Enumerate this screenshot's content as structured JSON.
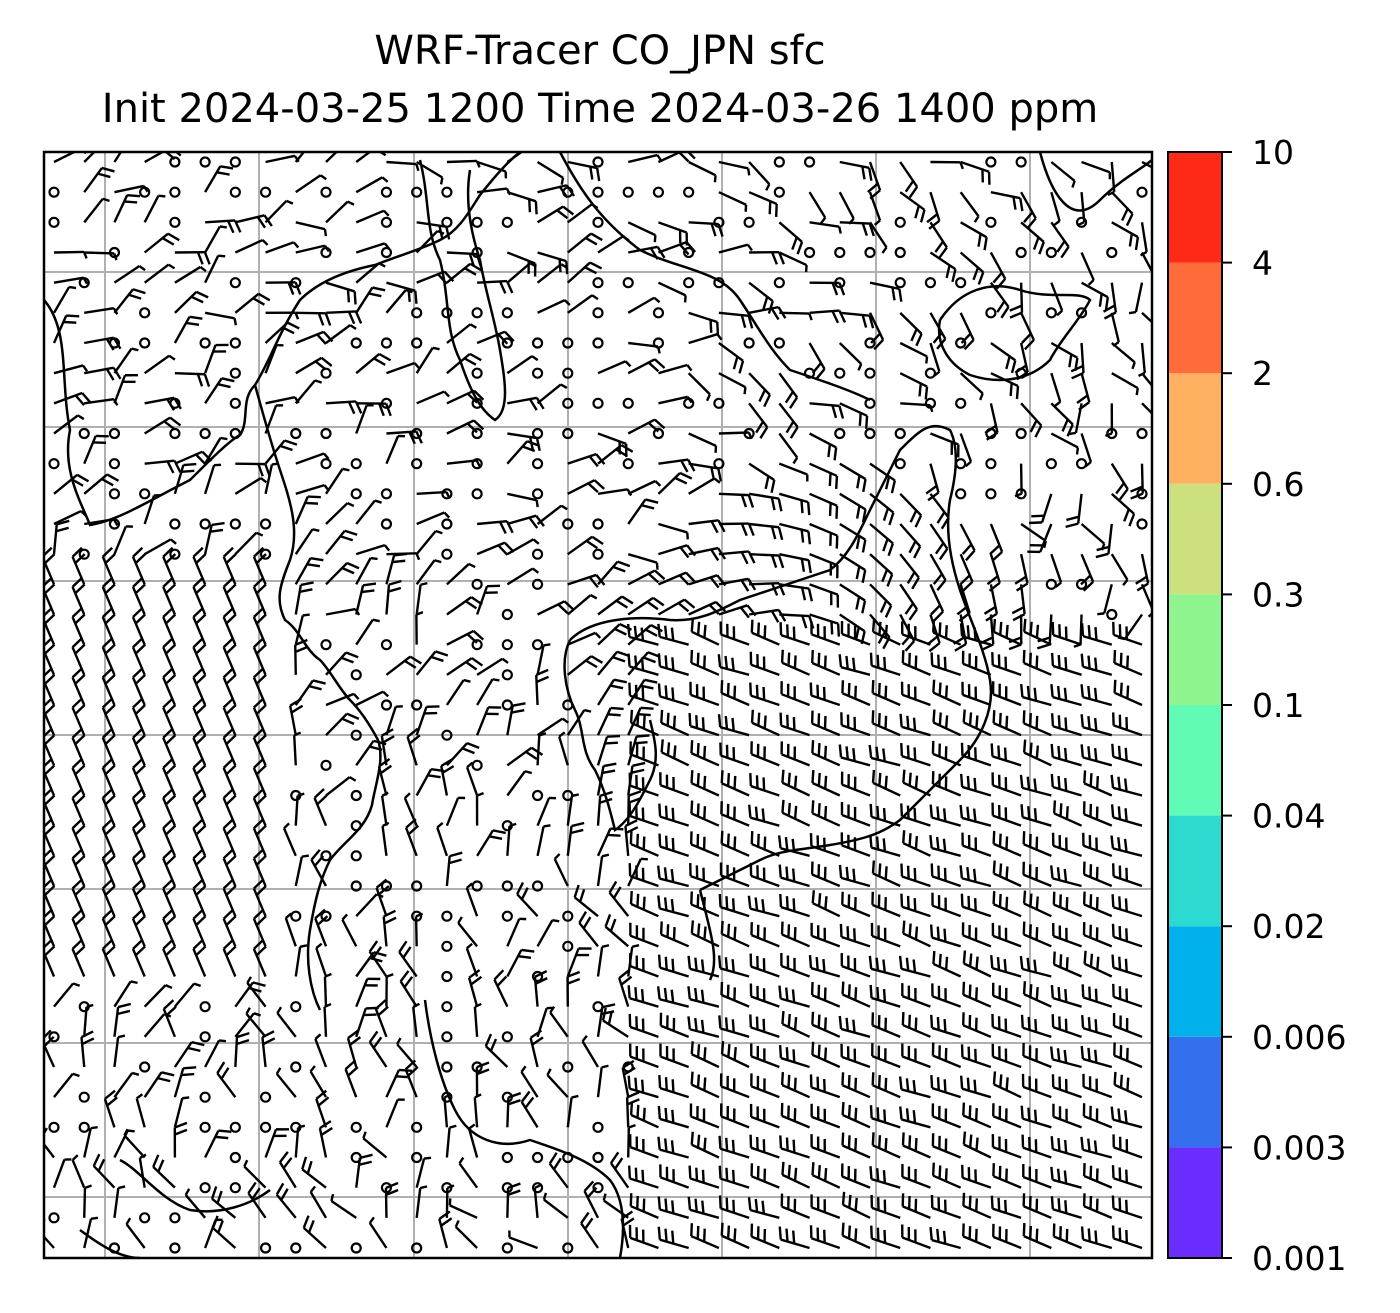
{
  "title": {
    "line1": "WRF-Tracer CO_JPN sfc",
    "line2": "Init 2024-03-25 1200 Time 2024-03-26 1400 ppm"
  },
  "colorbar": {
    "levels": [
      "0.001",
      "0.003",
      "0.006",
      "0.02",
      "0.04",
      "0.1",
      "0.3",
      "0.6",
      "2",
      "4",
      "10"
    ],
    "colors": [
      "#6a2cff",
      "#3470ee",
      "#00b1ec",
      "#2ddad0",
      "#62fbb6",
      "#8ef48e",
      "#cde07e",
      "#ffb060",
      "#ff6c3a",
      "#ff2a16"
    ]
  },
  "map": {
    "gridlines": true,
    "tracer_field_shading": "none above 0.001 ppm",
    "wind_symbols": "barbs and calm circles",
    "colors": {
      "coastline": "#000000",
      "grid": "#b0b0b0",
      "frame": "#000000"
    }
  }
}
